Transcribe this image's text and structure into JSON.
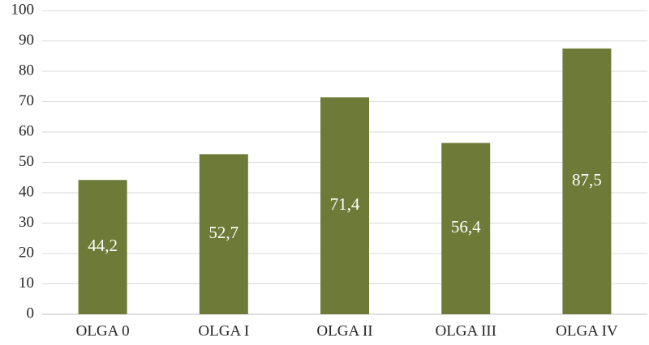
{
  "chart_data": {
    "type": "bar",
    "categories": [
      "OLGA 0",
      "OLGA I",
      "OLGA II",
      "OLGA III",
      "OLGA IV"
    ],
    "values": [
      44.2,
      52.7,
      71.4,
      56.4,
      87.5
    ],
    "value_labels": [
      "44,2",
      "52,7",
      "71,4",
      "56,4",
      "87,5"
    ],
    "color": "#6e7a37",
    "ylim": [
      0,
      100
    ],
    "yticks": [
      0,
      10,
      20,
      30,
      40,
      50,
      60,
      70,
      80,
      90,
      100
    ],
    "grid": true
  }
}
